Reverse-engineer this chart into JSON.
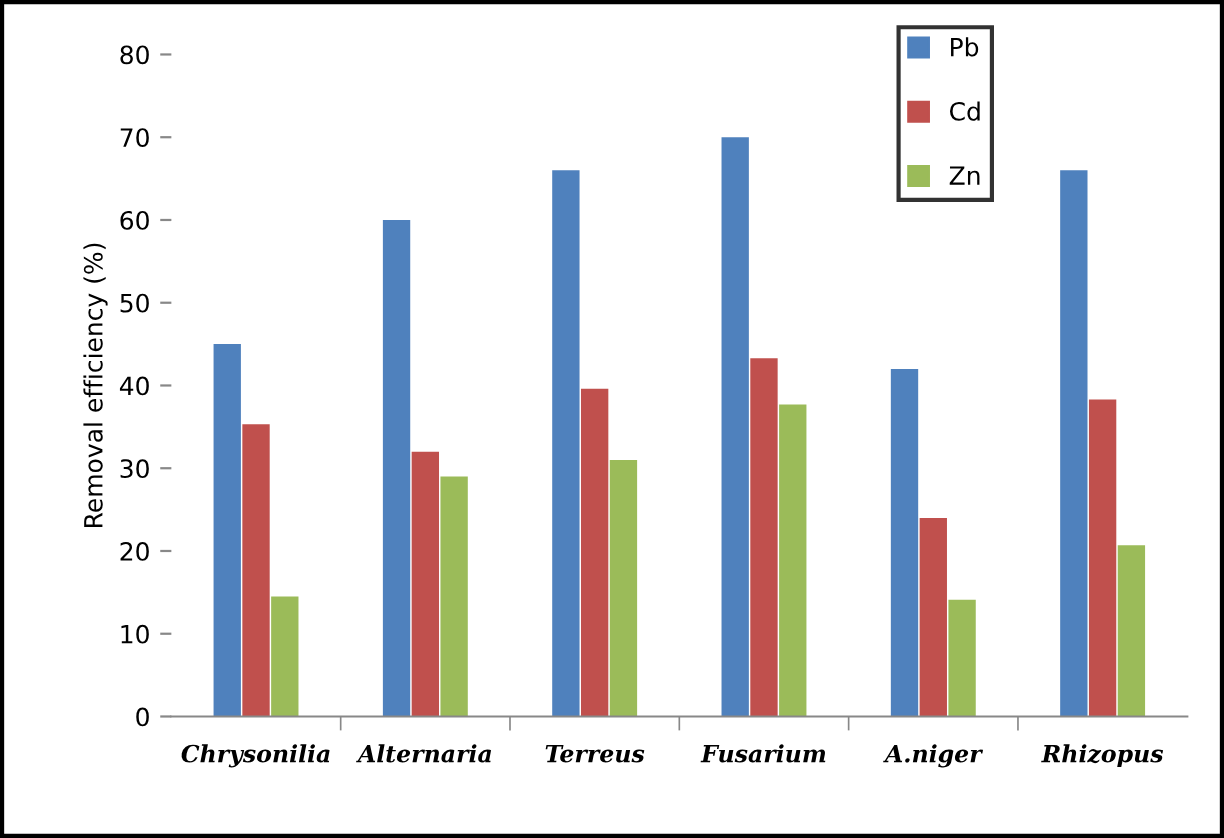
{
  "chart_data": {
    "type": "bar",
    "ylabel": "Removal efficiency (%)",
    "categories": [
      "Chrysonilia",
      "Alternaria",
      "Terreus",
      "Fusarium",
      "A.niger",
      "Rhizopus"
    ],
    "series": [
      {
        "name": "Pb",
        "color": "#4f81bd",
        "values": [
          45,
          60,
          66,
          70,
          42,
          66
        ]
      },
      {
        "name": "Cd",
        "color": "#c0504d",
        "values": [
          35.3,
          32,
          39.6,
          43.3,
          24,
          38.3
        ]
      },
      {
        "name": "Zn",
        "color": "#9bbb59",
        "values": [
          14.5,
          29,
          31,
          37.7,
          14.1,
          20.7
        ]
      }
    ],
    "ylim": [
      0,
      80
    ],
    "yticks": [
      0,
      10,
      20,
      30,
      40,
      50,
      60,
      70,
      80
    ],
    "grid": false,
    "legend": "top right"
  }
}
